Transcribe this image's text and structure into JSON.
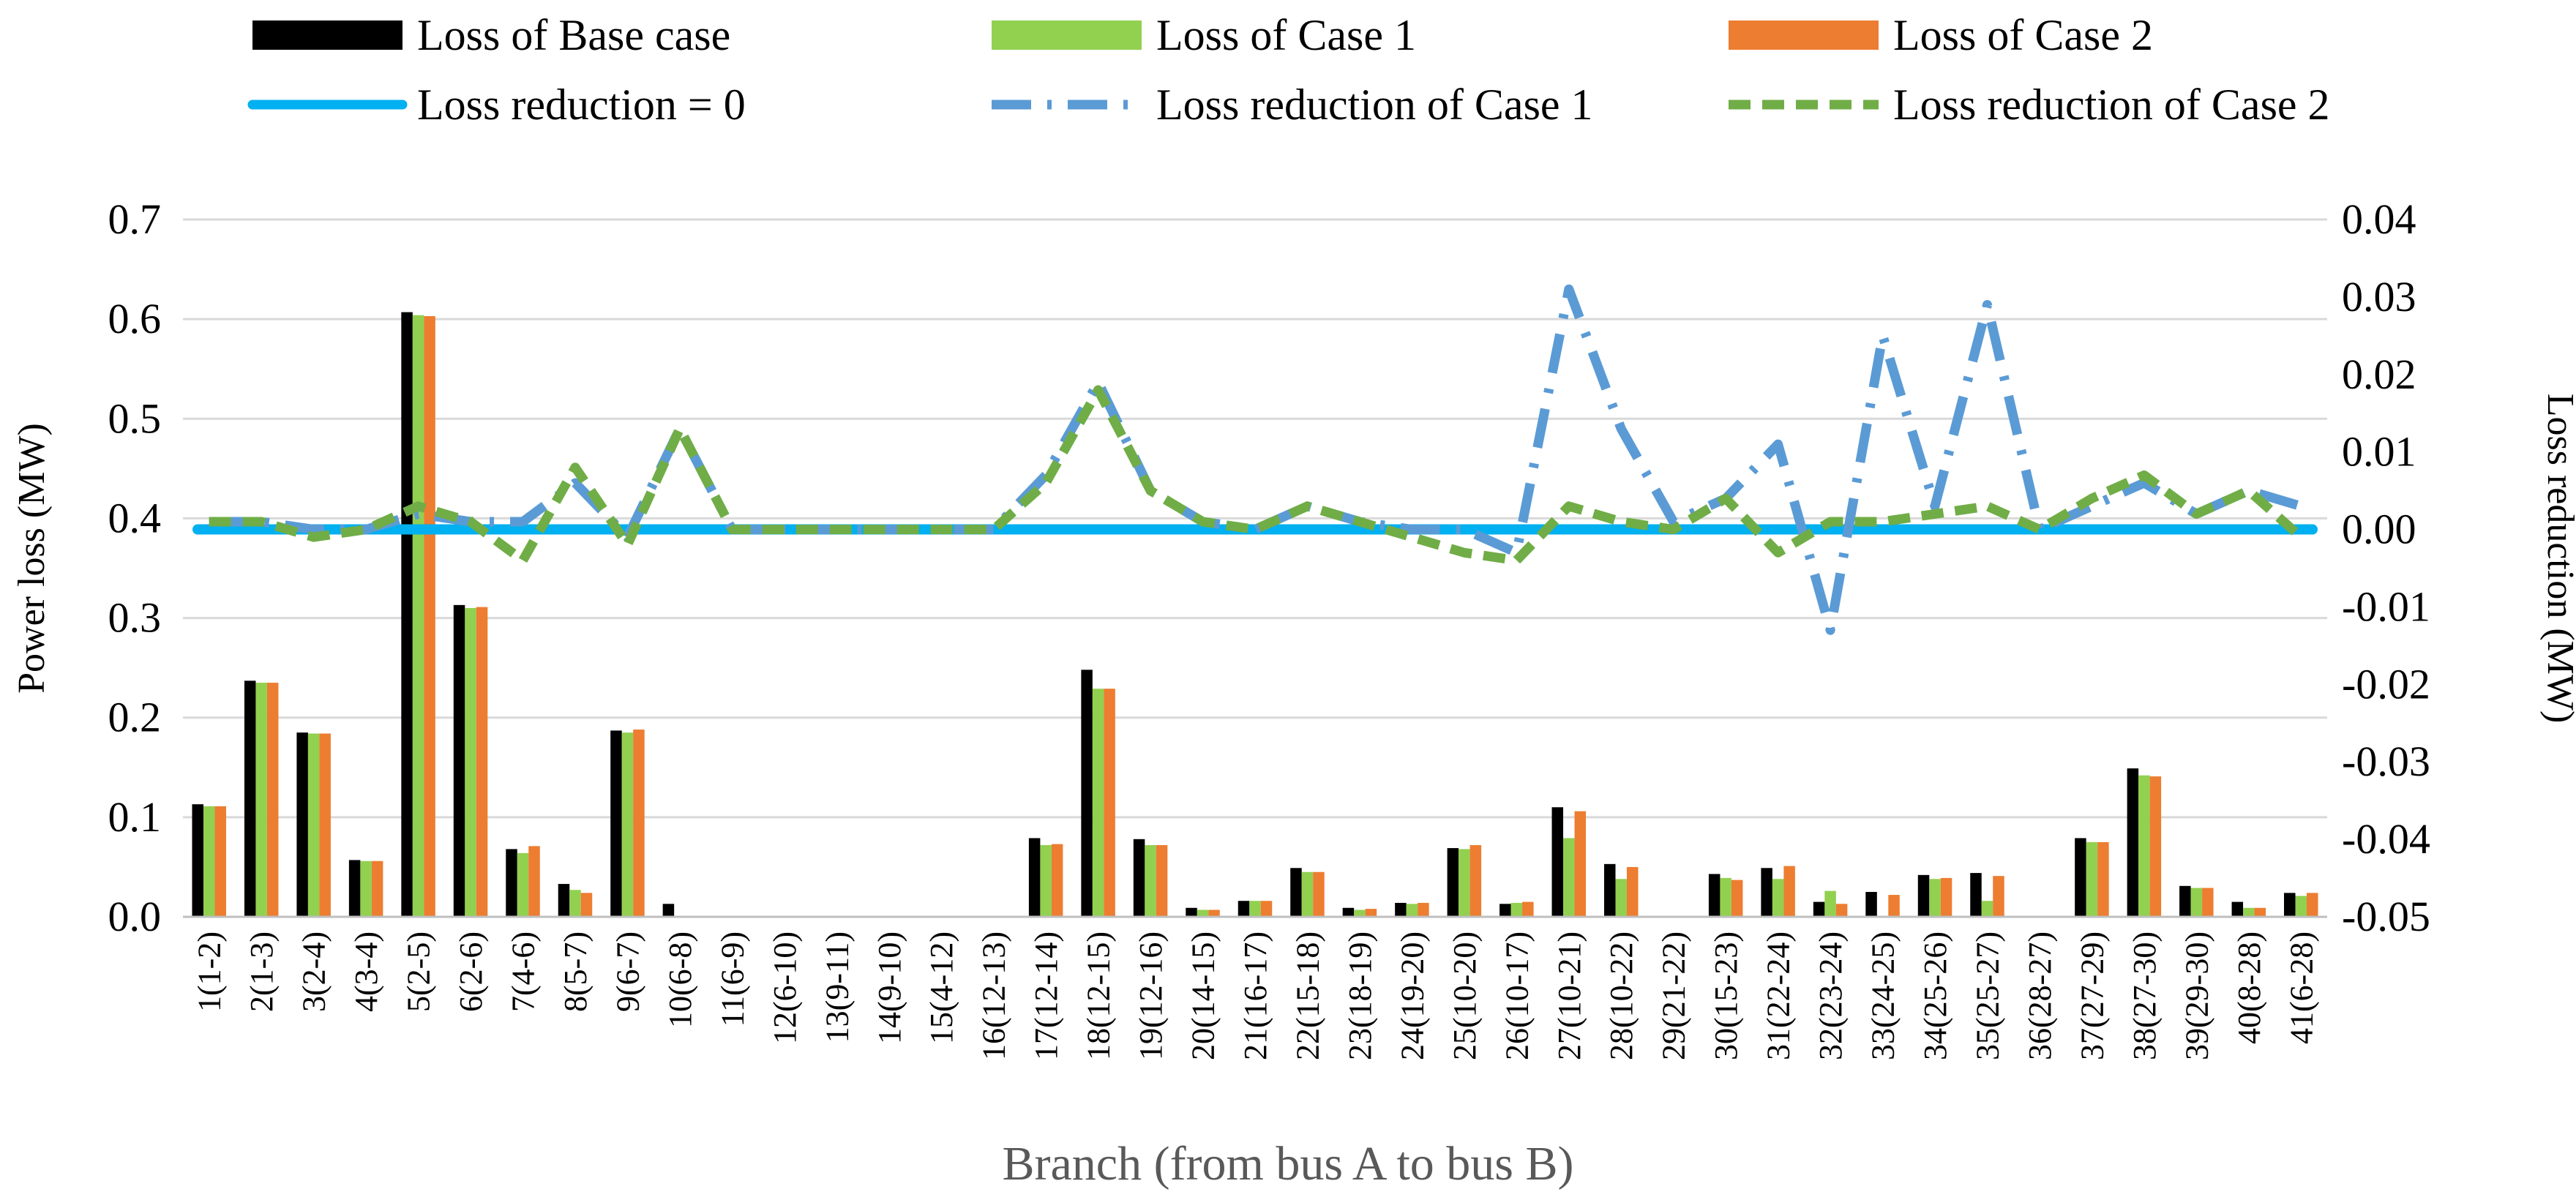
{
  "chart_data": {
    "type": "bar+line",
    "xlabel": "Branch (from bus A to bus B)",
    "ylabel_left": "Power loss (MW)",
    "ylabel_right": "Loss reduction (MW)",
    "ylim_left": [
      0,
      0.7
    ],
    "ylim_right": [
      -0.05,
      0.04
    ],
    "yticks_left": [
      "0.0",
      "0.1",
      "0.2",
      "0.3",
      "0.4",
      "0.5",
      "0.6",
      "0.7"
    ],
    "yticks_right": [
      "-0.05",
      "-0.04",
      "-0.03",
      "-0.02",
      "-0.01",
      "0.00",
      "0.01",
      "0.02",
      "0.03",
      "0.04"
    ],
    "grid": true,
    "legend_position": "top",
    "categories": [
      "1(1-2)",
      "2(1-3)",
      "3(2-4)",
      "4(3-4)",
      "5(2-5)",
      "6(2-6)",
      "7(4-6)",
      "8(5-7)",
      "9(6-7)",
      "10(6-8)",
      "11(6-9)",
      "12(6-10)",
      "13(9-11)",
      "14(9-10)",
      "15(4-12)",
      "16(12-13)",
      "17(12-14)",
      "18(12-15)",
      "19(12-16)",
      "20(14-15)",
      "21(16-17)",
      "22(15-18)",
      "23(18-19)",
      "24(19-20)",
      "25(10-20)",
      "26(10-17)",
      "27(10-21)",
      "28(10-22)",
      "29(21-22)",
      "30(15-23)",
      "31(22-24)",
      "32(23-24)",
      "33(24-25)",
      "34(25-26)",
      "35(25-27)",
      "36(28-27)",
      "37(27-29)",
      "38(27-30)",
      "39(29-30)",
      "40(8-28)",
      "41(6-28)"
    ],
    "bar_series": [
      {
        "name": "Loss of Base case",
        "color": "#000000",
        "values": [
          0.113,
          0.237,
          0.185,
          0.057,
          0.607,
          0.313,
          0.068,
          0.033,
          0.187,
          0.013,
          0,
          0,
          0,
          0,
          0,
          0,
          0.079,
          0.248,
          0.078,
          0.009,
          0.016,
          0.049,
          0.009,
          0.014,
          0.069,
          0.013,
          0.11,
          0.053,
          0.001,
          0.043,
          0.049,
          0.015,
          0.025,
          0.042,
          0.044,
          0,
          0.079,
          0.149,
          0.031,
          0.015,
          0.024
        ]
      },
      {
        "name": "Loss of Case 1",
        "color": "#92d050",
        "values": [
          0.111,
          0.235,
          0.184,
          0.056,
          0.604,
          0.31,
          0.064,
          0.027,
          0.185,
          0,
          0,
          0,
          0,
          0,
          0,
          0,
          0.072,
          0.229,
          0.072,
          0.007,
          0.016,
          0.045,
          0.007,
          0.013,
          0.068,
          0.014,
          0.079,
          0.038,
          0,
          0.039,
          0.038,
          0.026,
          0,
          0.038,
          0.016,
          0,
          0.075,
          0.142,
          0.029,
          0.009,
          0.021
        ]
      },
      {
        "name": "Loss of Case 2",
        "color": "#ed7d31",
        "values": [
          0.111,
          0.235,
          0.184,
          0.056,
          0.603,
          0.311,
          0.071,
          0.024,
          0.188,
          0,
          0,
          0,
          0,
          0,
          0,
          0,
          0.073,
          0.229,
          0.072,
          0.007,
          0.016,
          0.045,
          0.008,
          0.014,
          0.072,
          0.015,
          0.106,
          0.05,
          0,
          0.037,
          0.051,
          0.013,
          0.022,
          0.039,
          0.041,
          0,
          0.075,
          0.141,
          0.029,
          0.009,
          0.024
        ]
      }
    ],
    "line_series": [
      {
        "name": "Loss reduction = 0",
        "color": "#00b0f0",
        "style": "solid",
        "values": [
          0,
          0,
          0,
          0,
          0,
          0,
          0,
          0,
          0,
          0,
          0,
          0,
          0,
          0,
          0,
          0,
          0,
          0,
          0,
          0,
          0,
          0,
          0,
          0,
          0,
          0,
          0,
          0,
          0,
          0,
          0,
          0,
          0,
          0,
          0,
          0,
          0,
          0,
          0,
          0,
          0
        ]
      },
      {
        "name": "Loss reduction of Case 1",
        "color": "#5b9bd5",
        "style": "longdashdot",
        "values": [
          0.001,
          0.001,
          0,
          0,
          0.002,
          0.001,
          0.001,
          0.006,
          -0.001,
          0.013,
          0,
          0,
          0,
          0,
          0,
          0,
          0.007,
          0.019,
          0.005,
          0.001,
          0,
          0.003,
          0.001,
          0,
          0,
          -0.003,
          0.031,
          0.013,
          0.001,
          0.004,
          0.011,
          -0.013,
          0.025,
          0.003,
          0.029,
          0,
          0.003,
          0.006,
          0.002,
          0.005,
          0.003
        ]
      },
      {
        "name": "Loss reduction of Case 2",
        "color": "#70ad47",
        "style": "dashed",
        "values": [
          0.001,
          0.001,
          -0.001,
          0,
          0.003,
          0.001,
          -0.004,
          0.008,
          -0.002,
          0.013,
          0,
          0,
          0,
          0,
          0,
          0,
          0.006,
          0.018,
          0.005,
          0.001,
          0,
          0.003,
          0.001,
          -0.001,
          -0.003,
          -0.004,
          0.003,
          0.001,
          0,
          0.004,
          -0.003,
          0.001,
          0.001,
          0.002,
          0.003,
          0,
          0.004,
          0.007,
          0.002,
          0.005,
          -0.001
        ]
      }
    ]
  }
}
